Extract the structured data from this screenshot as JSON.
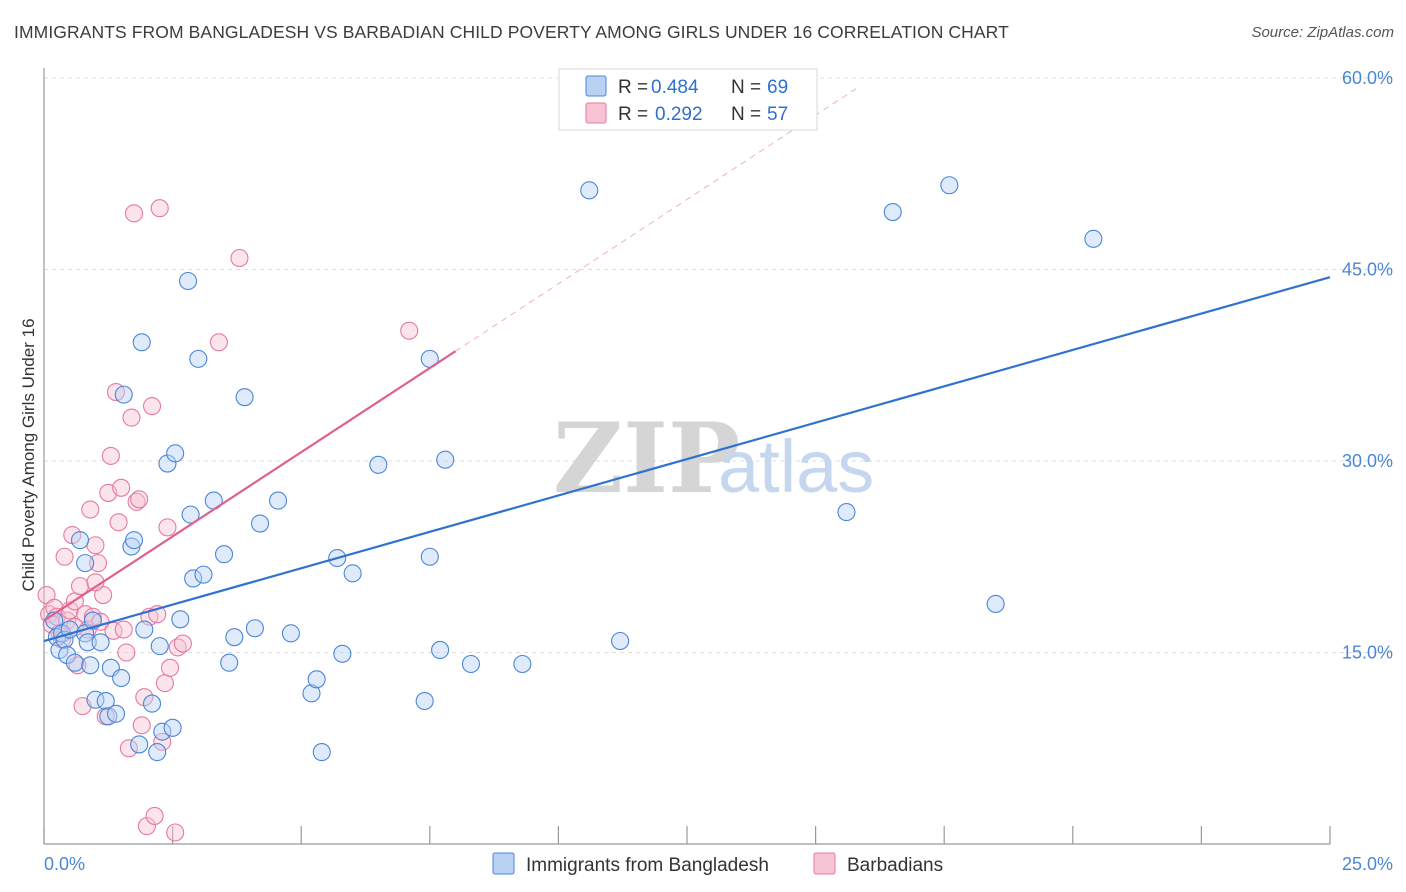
{
  "title": "IMMIGRANTS FROM BANGLADESH VS BARBADIAN CHILD POVERTY AMONG GIRLS UNDER 16 CORRELATION CHART",
  "source": "Source: ZipAtlas.com",
  "watermark": {
    "zip": "ZIP",
    "atlas": "atlas"
  },
  "colors": {
    "blue": "#4a86d8",
    "blue_fill": "#b9d2f3",
    "blue_line": "#2f72cf",
    "pink": "#e57aa0",
    "pink_fill": "#f7c3d5",
    "pink_line": "#e0608d",
    "grid": "#dcdcdc"
  },
  "legend": {
    "rows": [
      {
        "r_label": "R =",
        "r_value": "0.484",
        "n_label": "N =",
        "n_value": "69"
      },
      {
        "r_label": "R =",
        "r_value": "0.292",
        "n_label": "N =",
        "n_value": "57"
      }
    ]
  },
  "chart_data": {
    "type": "scatter",
    "title": "IMMIGRANTS FROM BANGLADESH VS BARBADIAN CHILD POVERTY AMONG GIRLS UNDER 16 CORRELATION CHART",
    "xlabel": "",
    "ylabel": "Child Poverty Among Girls Under 16",
    "xlim": [
      0,
      25
    ],
    "ylim": [
      0,
      60
    ],
    "x_tick_labels": [
      "0.0%",
      "25.0%"
    ],
    "y_ticks": [
      15,
      30,
      45,
      60
    ],
    "y_tick_labels": [
      "15.0%",
      "30.0%",
      "45.0%",
      "60.0%"
    ],
    "grid": true,
    "legend_position": "top-center",
    "series": [
      {
        "name": "Immigrants from Bangladesh",
        "color": "#4a86d8",
        "trend": {
          "x": [
            0,
            25
          ],
          "y": [
            15.9,
            44.4
          ],
          "style": "solid"
        },
        "points": [
          [
            0.2,
            17.5
          ],
          [
            0.25,
            16.2
          ],
          [
            0.3,
            15.2
          ],
          [
            0.35,
            16.5
          ],
          [
            0.4,
            16.0
          ],
          [
            0.45,
            14.8
          ],
          [
            0.5,
            16.8
          ],
          [
            0.6,
            14.2
          ],
          [
            0.7,
            23.8
          ],
          [
            0.8,
            22.0
          ],
          [
            0.8,
            16.5
          ],
          [
            0.85,
            15.8
          ],
          [
            0.9,
            14.0
          ],
          [
            0.95,
            17.5
          ],
          [
            1.0,
            11.3
          ],
          [
            1.1,
            15.8
          ],
          [
            1.2,
            11.2
          ],
          [
            1.25,
            10.0
          ],
          [
            1.3,
            13.8
          ],
          [
            1.4,
            10.2
          ],
          [
            1.5,
            13.0
          ],
          [
            1.55,
            35.2
          ],
          [
            1.7,
            23.3
          ],
          [
            1.75,
            23.8
          ],
          [
            1.85,
            7.8
          ],
          [
            1.9,
            39.3
          ],
          [
            1.95,
            16.8
          ],
          [
            2.1,
            11.0
          ],
          [
            2.2,
            7.2
          ],
          [
            2.25,
            15.5
          ],
          [
            2.3,
            8.8
          ],
          [
            2.4,
            29.8
          ],
          [
            2.5,
            9.1
          ],
          [
            2.55,
            30.6
          ],
          [
            2.65,
            17.6
          ],
          [
            2.8,
            44.1
          ],
          [
            2.85,
            25.8
          ],
          [
            2.9,
            20.8
          ],
          [
            3.0,
            38.0
          ],
          [
            3.1,
            21.1
          ],
          [
            3.3,
            26.9
          ],
          [
            3.5,
            22.7
          ],
          [
            3.6,
            14.2
          ],
          [
            3.7,
            16.2
          ],
          [
            3.9,
            35.0
          ],
          [
            4.1,
            16.9
          ],
          [
            4.2,
            25.1
          ],
          [
            4.55,
            26.9
          ],
          [
            4.8,
            16.5
          ],
          [
            5.2,
            11.8
          ],
          [
            5.3,
            12.9
          ],
          [
            5.4,
            7.2
          ],
          [
            5.7,
            22.4
          ],
          [
            5.8,
            14.9
          ],
          [
            6.0,
            21.2
          ],
          [
            6.5,
            29.7
          ],
          [
            7.4,
            11.2
          ],
          [
            7.5,
            22.5
          ],
          [
            7.5,
            38.0
          ],
          [
            7.7,
            15.2
          ],
          [
            7.8,
            30.1
          ],
          [
            8.3,
            14.1
          ],
          [
            9.3,
            14.1
          ],
          [
            10.6,
            51.2
          ],
          [
            11.2,
            15.9
          ],
          [
            15.6,
            26.0
          ],
          [
            16.5,
            49.5
          ],
          [
            17.6,
            51.6
          ],
          [
            18.5,
            18.8
          ],
          [
            20.4,
            47.4
          ]
        ]
      },
      {
        "name": "Barbadians",
        "color": "#e57aa0",
        "trend": {
          "x": [
            0,
            8
          ],
          "y": [
            17.5,
            38.6
          ],
          "style": "solid",
          "dashed_extension": {
            "x": [
              8,
              15.8
            ],
            "y": [
              38.6,
              59.2
            ]
          }
        },
        "points": [
          [
            0.05,
            19.5
          ],
          [
            0.1,
            18.0
          ],
          [
            0.15,
            17.2
          ],
          [
            0.2,
            18.5
          ],
          [
            0.25,
            17.8
          ],
          [
            0.3,
            16.5
          ],
          [
            0.35,
            16.0
          ],
          [
            0.4,
            22.5
          ],
          [
            0.45,
            17.5
          ],
          [
            0.5,
            18.3
          ],
          [
            0.55,
            24.2
          ],
          [
            0.6,
            19.0
          ],
          [
            0.65,
            14.0
          ],
          [
            0.7,
            20.2
          ],
          [
            0.75,
            10.8
          ],
          [
            0.8,
            18.0
          ],
          [
            0.85,
            16.8
          ],
          [
            0.9,
            26.2
          ],
          [
            0.95,
            17.8
          ],
          [
            1.0,
            23.4
          ],
          [
            1.05,
            22.0
          ],
          [
            1.1,
            17.4
          ],
          [
            1.15,
            19.5
          ],
          [
            1.2,
            10.0
          ],
          [
            1.25,
            27.5
          ],
          [
            1.3,
            30.4
          ],
          [
            1.35,
            16.7
          ],
          [
            1.4,
            35.4
          ],
          [
            1.45,
            25.2
          ],
          [
            1.5,
            27.9
          ],
          [
            1.55,
            16.8
          ],
          [
            1.6,
            15.0
          ],
          [
            1.65,
            7.5
          ],
          [
            1.7,
            33.4
          ],
          [
            1.75,
            49.4
          ],
          [
            1.8,
            26.8
          ],
          [
            1.85,
            27.0
          ],
          [
            1.9,
            9.3
          ],
          [
            1.95,
            11.5
          ],
          [
            2.0,
            1.4
          ],
          [
            2.05,
            17.8
          ],
          [
            2.1,
            34.3
          ],
          [
            2.15,
            2.2
          ],
          [
            2.2,
            18.0
          ],
          [
            2.25,
            49.8
          ],
          [
            2.3,
            8.0
          ],
          [
            2.35,
            12.6
          ],
          [
            2.4,
            24.8
          ],
          [
            2.45,
            13.8
          ],
          [
            2.55,
            0.9
          ],
          [
            2.6,
            15.4
          ],
          [
            2.7,
            15.7
          ],
          [
            3.4,
            39.3
          ],
          [
            3.8,
            45.9
          ],
          [
            7.1,
            40.2
          ],
          [
            1.0,
            20.5
          ],
          [
            0.6,
            17.0
          ]
        ]
      }
    ]
  }
}
